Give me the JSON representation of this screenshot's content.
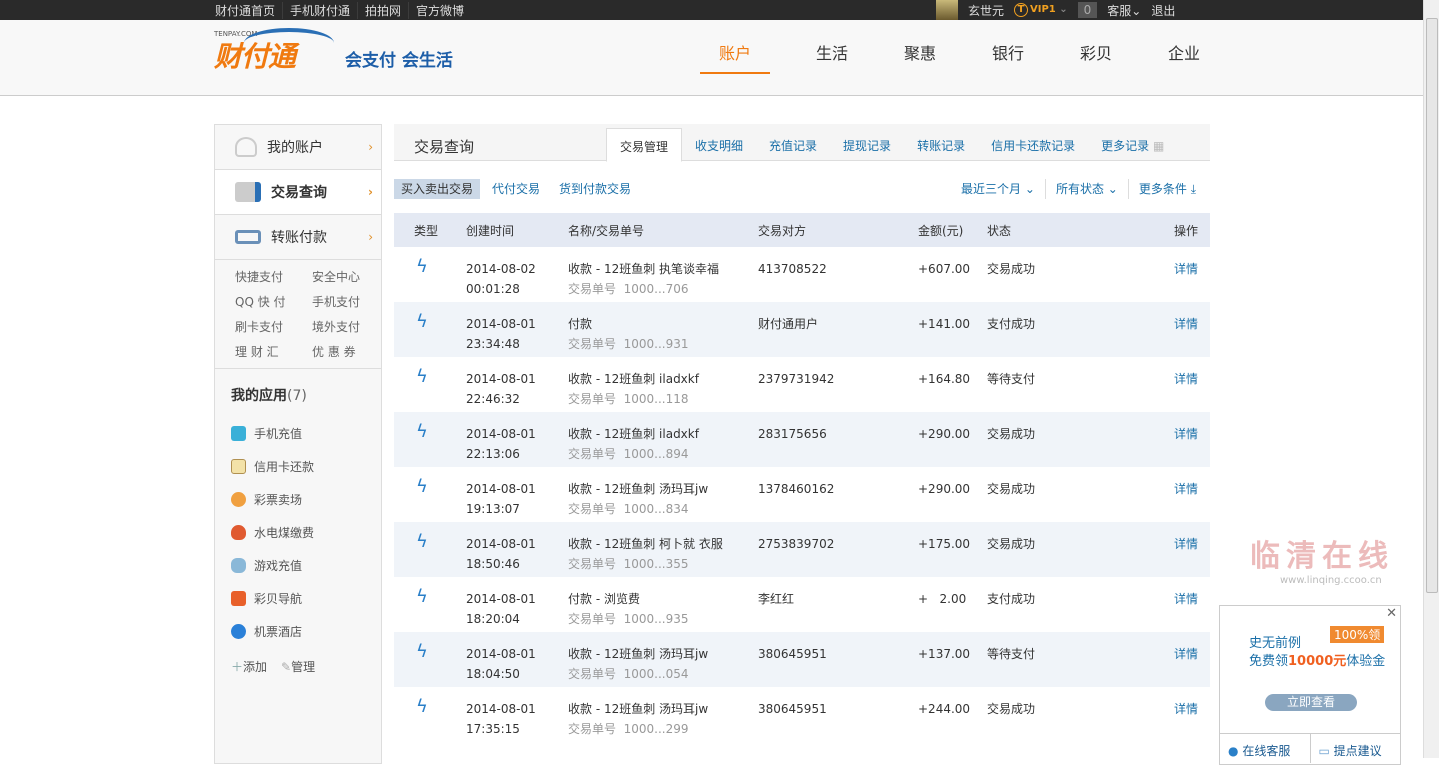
{
  "topbar": {
    "links": [
      "财付通首页",
      "手机财付通",
      "拍拍网",
      "官方微博"
    ],
    "user": "玄世元",
    "vip": "VIP1",
    "messages": "0",
    "service": "客服",
    "logout": "退出"
  },
  "header": {
    "logo_small": "TENPAY.COM",
    "logo": "财付通",
    "slogan": "会支付 会生活",
    "nav": [
      "账户",
      "生活",
      "聚惠",
      "银行",
      "彩贝",
      "企业"
    ],
    "active_nav": "账户"
  },
  "sidebar": {
    "items": [
      {
        "label": "我的账户"
      },
      {
        "label": "交易查询"
      },
      {
        "label": "转账付款"
      }
    ],
    "quick": [
      "快捷支付",
      "安全中心",
      "QQ 快 付",
      "手机支付",
      "刷卡支付",
      "境外支付",
      "理 财 汇",
      "优 惠 券"
    ],
    "apps_title": "我的应用",
    "apps_count": "(7)",
    "apps": [
      "手机充值",
      "信用卡还款",
      "彩票卖场",
      "水电煤缴费",
      "游戏充值",
      "彩贝导航",
      "机票酒店"
    ],
    "add": "添加",
    "manage": "管理"
  },
  "main": {
    "title": "交易查询",
    "tabs": [
      "交易管理",
      "收支明细",
      "充值记录",
      "提现记录",
      "转账记录",
      "信用卡还款记录",
      "更多记录"
    ],
    "subtabs": [
      "买入卖出交易",
      "代付交易",
      "货到付款交易"
    ],
    "filters": [
      "最近三个月",
      "所有状态",
      "更多条件"
    ],
    "columns": [
      "类型",
      "创建时间",
      "名称/交易单号",
      "交易对方",
      "金额(元)",
      "状态",
      "操作"
    ],
    "rows": [
      {
        "date": "2014-08-02",
        "time": "00:01:28",
        "name": "收款 - 12班鱼刺 执笔谈幸福",
        "order": "交易单号  1000...706",
        "party": "413708522",
        "amount": "+607.00",
        "status": "交易成功",
        "action": "详情"
      },
      {
        "date": "2014-08-01",
        "time": "23:34:48",
        "name": "付款",
        "order": "交易单号  1000...931",
        "party": "财付通用户",
        "amount": "+141.00",
        "status": "支付成功",
        "action": "详情"
      },
      {
        "date": "2014-08-01",
        "time": "22:46:32",
        "name": "收款 - 12班鱼刺 iladxkf",
        "order": "交易单号  1000...118",
        "party": "2379731942",
        "amount": "+164.80",
        "status": "等待支付",
        "action": "详情"
      },
      {
        "date": "2014-08-01",
        "time": "22:13:06",
        "name": "收款 - 12班鱼刺 iladxkf",
        "order": "交易单号  1000...894",
        "party": "283175656",
        "amount": "+290.00",
        "status": "交易成功",
        "action": "详情"
      },
      {
        "date": "2014-08-01",
        "time": "19:13:07",
        "name": "收款 - 12班鱼刺 汤玛耳jw",
        "order": "交易单号  1000...834",
        "party": "1378460162",
        "amount": "+290.00",
        "status": "交易成功",
        "action": "详情"
      },
      {
        "date": "2014-08-01",
        "time": "18:50:46",
        "name": "收款 - 12班鱼刺 柯卜就 衣服",
        "order": "交易单号  1000...355",
        "party": "2753839702",
        "amount": "+175.00",
        "status": "交易成功",
        "action": "详情"
      },
      {
        "date": "2014-08-01",
        "time": "18:20:04",
        "name": "付款 - 浏览费",
        "order": "交易单号  1000...935",
        "party": "李红红",
        "amount": "+   2.00",
        "status": "支付成功",
        "action": "详情"
      },
      {
        "date": "2014-08-01",
        "time": "18:04:50",
        "name": "收款 - 12班鱼刺 汤玛耳jw",
        "order": "交易单号  1000...054",
        "party": "380645951",
        "amount": "+137.00",
        "status": "等待支付",
        "action": "详情"
      },
      {
        "date": "2014-08-01",
        "time": "17:35:15",
        "name": "收款 - 12班鱼刺 汤玛耳jw",
        "order": "交易单号  1000...299",
        "party": "380645951",
        "amount": "+244.00",
        "status": "交易成功",
        "action": "详情"
      }
    ]
  },
  "ad": {
    "line1": "史无前例",
    "badge": "100%领",
    "line2_pre": "免费领",
    "line2_amount": "10000元",
    "line2_post": "体验金",
    "button": "立即查看",
    "online_service": "在线客服",
    "feedback": "提点建议"
  },
  "watermark": {
    "text": "临清在线",
    "url": "www.linqing.ccoo.cn"
  },
  "colors": {
    "accent": "#f07a10",
    "link": "#1a6fa8",
    "topbar": "#2a2a2a"
  }
}
